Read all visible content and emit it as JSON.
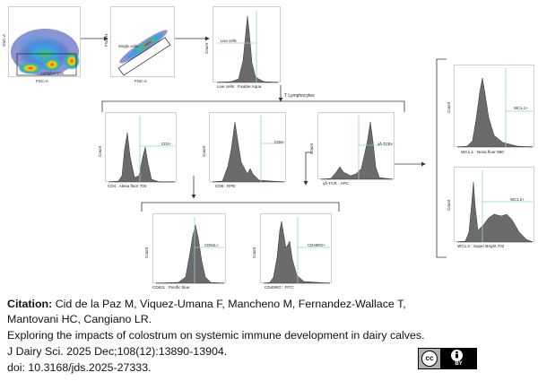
{
  "panels": [
    {
      "id": "lymphocytes",
      "kind": "scatter",
      "xlabel": "FSC-A",
      "ylabel": "SSC-A",
      "gate": "Lymphocytes"
    },
    {
      "id": "single-cells",
      "kind": "scatter-diagonal",
      "xlabel": "FSC-A",
      "ylabel": "FSC-H",
      "gate": "Single cells"
    },
    {
      "id": "live-cells",
      "kind": "histogram",
      "xlabel": "Live cells : Fixable Aqua",
      "ylabel": "Count",
      "gate": "Live cells"
    },
    {
      "id": "cd4",
      "kind": "histogram",
      "xlabel": "CD4 : Alexa fluor 700",
      "ylabel": "Count",
      "gate": "CD4+"
    },
    {
      "id": "cd8",
      "kind": "histogram",
      "xlabel": "CD8 : RPE",
      "ylabel": "Count",
      "gate": "CD8+"
    },
    {
      "id": "gd-tcr",
      "kind": "histogram",
      "xlabel": "γδ-TCR : APC",
      "ylabel": "Count",
      "gate": "γδ-TCR+"
    },
    {
      "id": "cd62l",
      "kind": "histogram",
      "xlabel": "CD62L : Pacific blue",
      "ylabel": "Count",
      "gate": "CD62L+"
    },
    {
      "id": "cd45ro",
      "kind": "histogram",
      "xlabel": "CD45RO : FITC",
      "ylabel": "Count",
      "gate": "CD45RO+"
    },
    {
      "id": "wc11",
      "kind": "histogram",
      "xlabel": "WC1.1 : Nova fluor 690",
      "ylabel": "Count",
      "gate": "WC1.1+"
    },
    {
      "id": "wc12",
      "kind": "histogram",
      "xlabel": "WC1.2 : Super Bright 702",
      "ylabel": "Count",
      "gate": "WC1.2+"
    }
  ],
  "flow_label": "T Lymphocytes",
  "citation": {
    "label": "Citation:",
    "authors_line1": " Cid de la Paz M, Viquez-Umana F, Mancheno M, Fernandez-Wallace T,",
    "authors_line2": "Mantovani HC, Cangiano LR.",
    "title": "Exploring the impacts of colostrum on systemic immune development in dairy calves.",
    "journal": "J Dairy Sci. 2025 Dec;108(12):13890-13904.",
    "doi": "doi: 10.3168/jds.2025-27333."
  },
  "license_badge": {
    "cc": "cc",
    "by": "BY"
  },
  "colors": {
    "histogram_fill": "#6b6b6b",
    "gate_line": "#8fd4cf",
    "connector": "#333333"
  }
}
